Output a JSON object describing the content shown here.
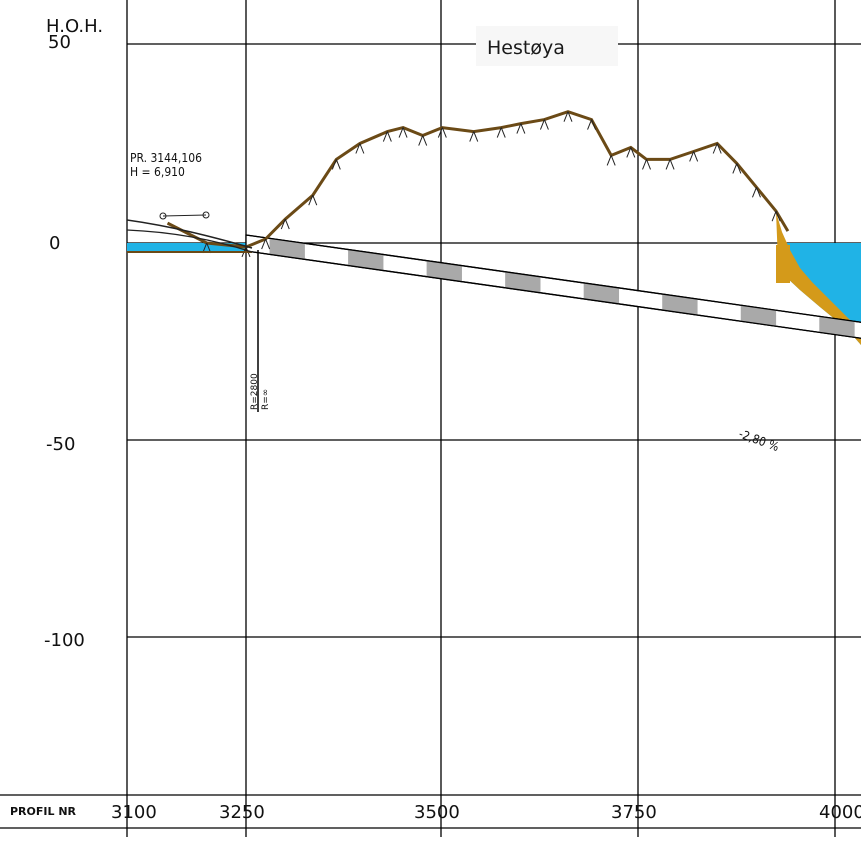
{
  "title": "Hestøya",
  "axis_label": "H.O.H.",
  "profile_label": "PROFIL NR",
  "point_label": {
    "line1": "PR. 3144,106",
    "line2": "H = 6,910"
  },
  "curve_labels": {
    "r1": "R=2800",
    "r2": "R=∞"
  },
  "gradient_label": "-2,80 %",
  "chart_data": {
    "type": "profile",
    "title": "Hestøya",
    "ylabel": "H.O.H.",
    "xlabel": "PROFIL NR",
    "xlim": [
      3100,
      4000
    ],
    "ylim": [
      -140,
      50
    ],
    "x_ticks": [
      "3100",
      "3250",
      "3500",
      "3750",
      "4000"
    ],
    "y_ticks": [
      "50",
      "0",
      "-50",
      "-100"
    ],
    "terrain": [
      [
        3150,
        5
      ],
      [
        3200,
        0
      ],
      [
        3250,
        -1
      ],
      [
        3275,
        1
      ],
      [
        3300,
        6
      ],
      [
        3335,
        12
      ],
      [
        3365,
        21
      ],
      [
        3395,
        25
      ],
      [
        3430,
        28
      ],
      [
        3450,
        29
      ],
      [
        3475,
        27
      ],
      [
        3500,
        29
      ],
      [
        3540,
        28
      ],
      [
        3575,
        29
      ],
      [
        3600,
        30
      ],
      [
        3630,
        31
      ],
      [
        3660,
        33
      ],
      [
        3690,
        31
      ],
      [
        3715,
        22
      ],
      [
        3740,
        24
      ],
      [
        3760,
        21
      ],
      [
        3790,
        21
      ],
      [
        3820,
        23
      ],
      [
        3850,
        25
      ],
      [
        3875,
        20
      ],
      [
        3900,
        14
      ],
      [
        3925,
        8
      ],
      [
        3940,
        3
      ]
    ],
    "tunnel_start": [
      3250,
      0
    ],
    "gradient_percent": -2.8,
    "start_point": {
      "station": 3144.106,
      "height": 6.91
    }
  }
}
